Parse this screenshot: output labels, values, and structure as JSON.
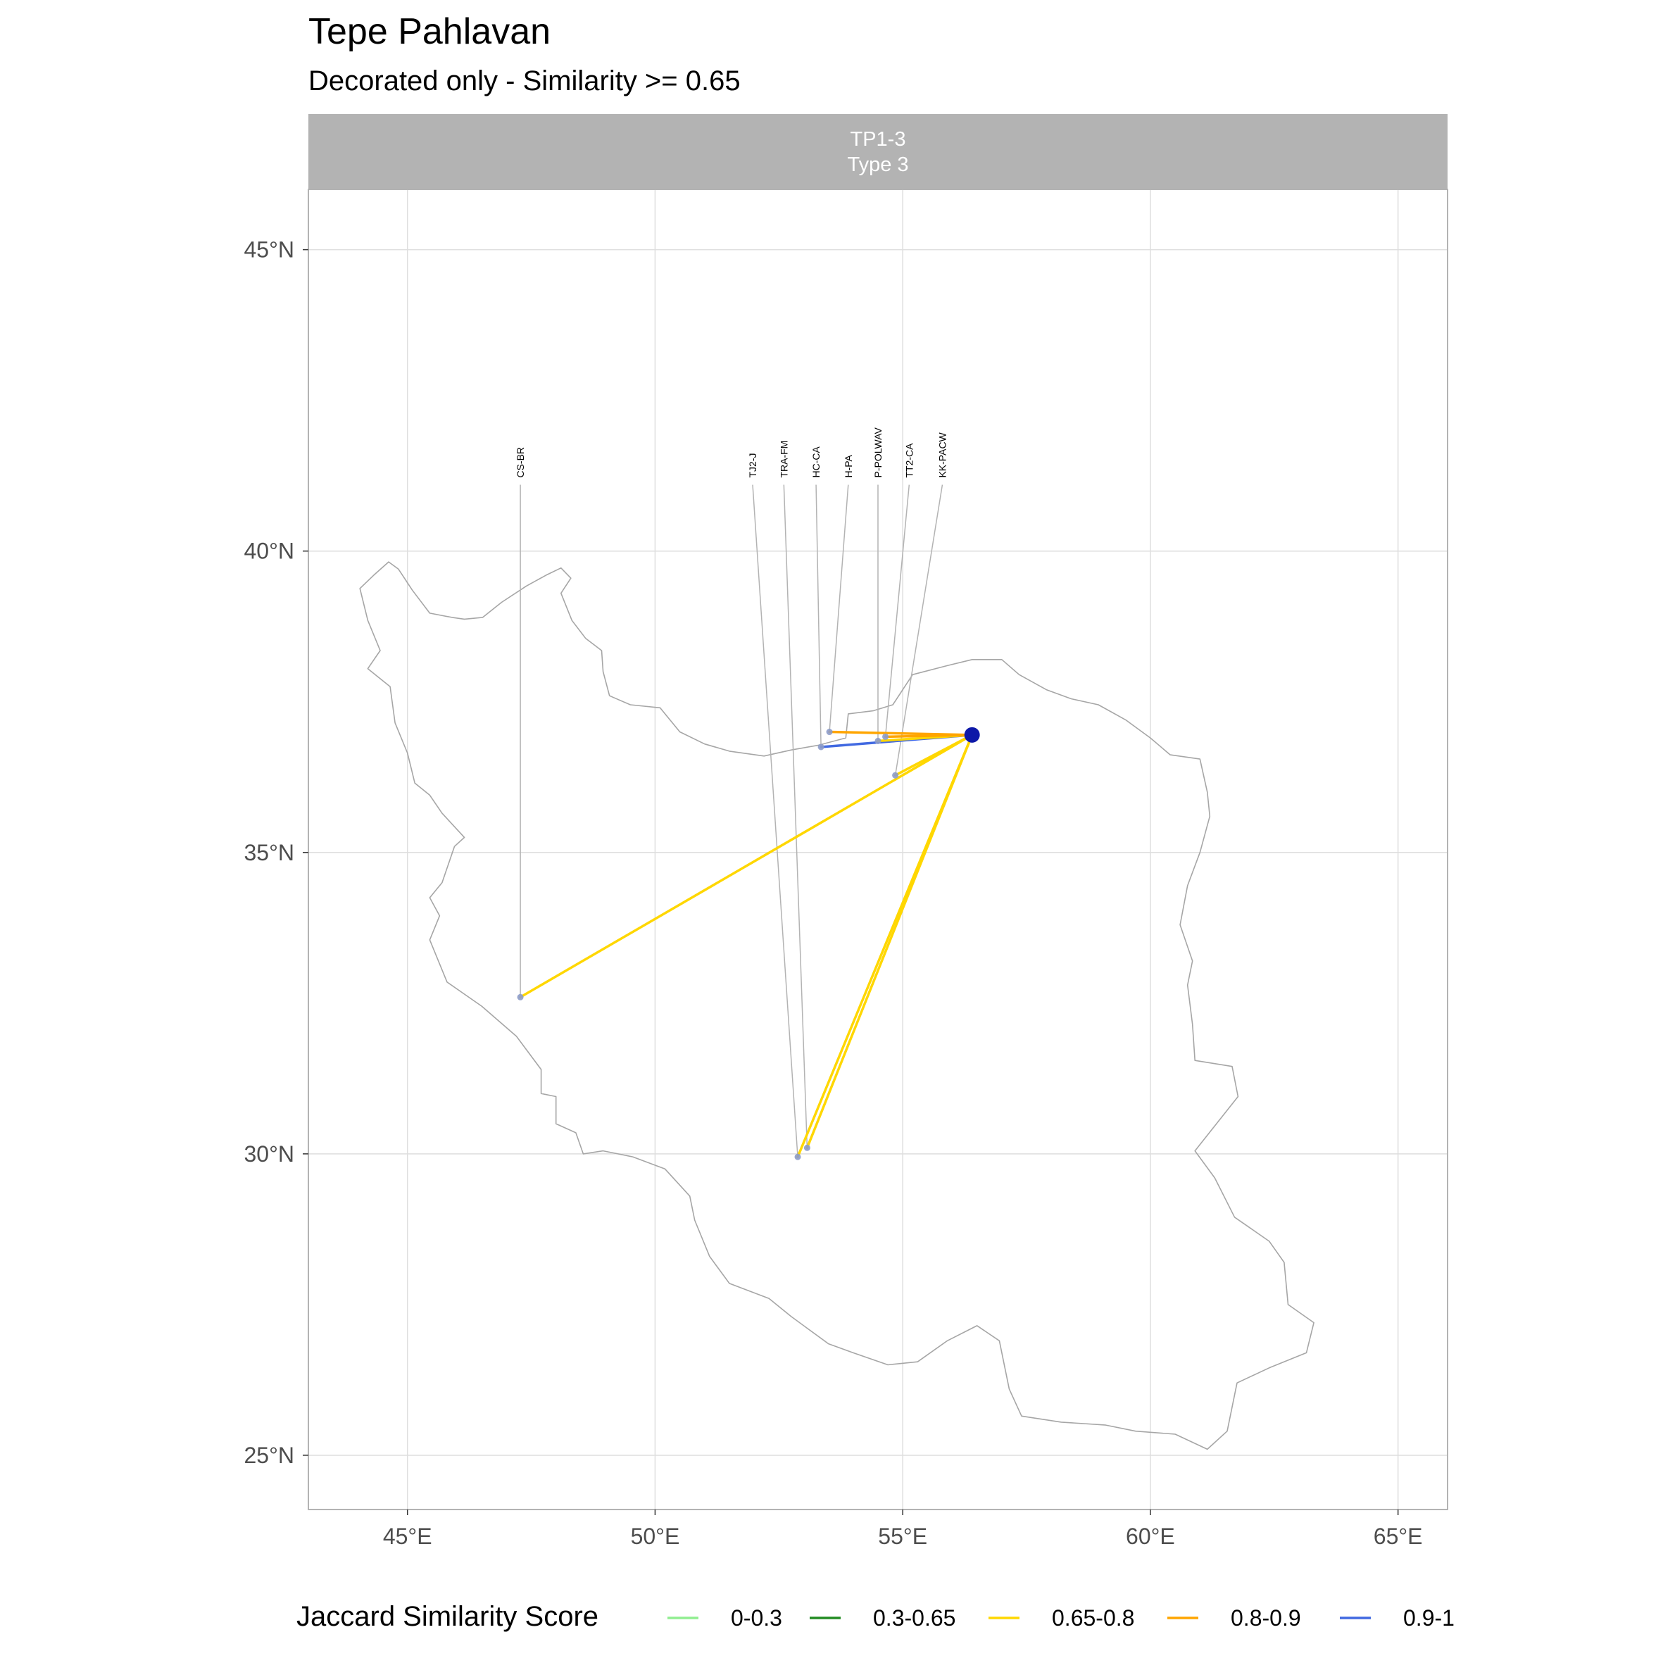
{
  "title": "Tepe Pahlavan",
  "subtitle": "Decorated only - Similarity >= 0.65",
  "facet": {
    "line1": "TP1-3",
    "line2": "Type 3"
  },
  "axes": {
    "x_ticks": [
      {
        "value": 45,
        "label": "45°E"
      },
      {
        "value": 50,
        "label": "50°E"
      },
      {
        "value": 55,
        "label": "55°E"
      },
      {
        "value": 60,
        "label": "60°E"
      },
      {
        "value": 65,
        "label": "65°E"
      }
    ],
    "y_ticks": [
      {
        "value": 25,
        "label": "25°N"
      },
      {
        "value": 30,
        "label": "30°N"
      },
      {
        "value": 35,
        "label": "35°N"
      },
      {
        "value": 40,
        "label": "40°N"
      },
      {
        "value": 45,
        "label": "45°N"
      }
    ],
    "xlim": [
      43,
      66
    ],
    "ylim": [
      24.1,
      46.0
    ]
  },
  "legend": {
    "title": "Jaccard Similarity Score",
    "items": [
      {
        "label": "0-0.3",
        "color": "#90EE90"
      },
      {
        "label": "0.3-0.65",
        "color": "#228B22"
      },
      {
        "label": "0.65-0.8",
        "color": "#FFD700"
      },
      {
        "label": "0.8-0.9",
        "color": "#FFA500"
      },
      {
        "label": "0.9-1",
        "color": "#4169E1"
      }
    ]
  },
  "chart_data": {
    "type": "map",
    "focal_site": {
      "lon": 56.4,
      "lat": 36.95
    },
    "label_lat": 41.1,
    "sites": [
      {
        "name": "CS-BR",
        "lon": 47.28,
        "lat": 32.6,
        "label_lon": 47.28,
        "score_class": "0.65-0.8"
      },
      {
        "name": "TJ2-J",
        "lon": 52.88,
        "lat": 29.95,
        "label_lon": 51.97,
        "score_class": "0.65-0.8"
      },
      {
        "name": "TRA-FM",
        "lon": 53.07,
        "lat": 30.1,
        "label_lon": 52.6,
        "score_class": "0.65-0.8"
      },
      {
        "name": "HC-CA",
        "lon": 53.35,
        "lat": 36.75,
        "label_lon": 53.25,
        "score_class": "0.9-1"
      },
      {
        "name": "H-PA",
        "lon": 53.52,
        "lat": 37.0,
        "label_lon": 53.9,
        "score_class": "0.8-0.9"
      },
      {
        "name": "P-POLWAV",
        "lon": 54.5,
        "lat": 36.85,
        "label_lon": 54.5,
        "score_class": "0.65-0.8"
      },
      {
        "name": "TT2-CA",
        "lon": 54.65,
        "lat": 36.92,
        "label_lon": 55.13,
        "score_class": "0.8-0.9"
      },
      {
        "name": "KK-PACW",
        "lon": 54.85,
        "lat": 36.28,
        "label_lon": 55.8,
        "score_class": "0.65-0.8"
      }
    ],
    "country_outline": [
      [
        44.04,
        39.38
      ],
      [
        44.32,
        39.6
      ],
      [
        44.62,
        39.82
      ],
      [
        44.82,
        39.7
      ],
      [
        45.1,
        39.35
      ],
      [
        45.45,
        38.97
      ],
      [
        45.9,
        38.9
      ],
      [
        46.15,
        38.87
      ],
      [
        46.52,
        38.9
      ],
      [
        46.9,
        39.15
      ],
      [
        47.4,
        39.42
      ],
      [
        47.8,
        39.6
      ],
      [
        48.1,
        39.72
      ],
      [
        48.3,
        39.55
      ],
      [
        48.1,
        39.3
      ],
      [
        48.32,
        38.85
      ],
      [
        48.6,
        38.55
      ],
      [
        48.92,
        38.35
      ],
      [
        48.95,
        38.0
      ],
      [
        49.08,
        37.6
      ],
      [
        49.5,
        37.45
      ],
      [
        50.1,
        37.4
      ],
      [
        50.5,
        37.0
      ],
      [
        51.0,
        36.8
      ],
      [
        51.5,
        36.68
      ],
      [
        52.2,
        36.6
      ],
      [
        52.75,
        36.7
      ],
      [
        53.3,
        36.78
      ],
      [
        53.85,
        36.9
      ],
      [
        53.9,
        37.3
      ],
      [
        54.4,
        37.35
      ],
      [
        54.8,
        37.45
      ],
      [
        55.2,
        37.95
      ],
      [
        55.9,
        38.1
      ],
      [
        56.4,
        38.2
      ],
      [
        57.0,
        38.2
      ],
      [
        57.35,
        37.95
      ],
      [
        57.9,
        37.7
      ],
      [
        58.4,
        37.55
      ],
      [
        58.95,
        37.45
      ],
      [
        59.5,
        37.2
      ],
      [
        60.0,
        36.9
      ],
      [
        60.4,
        36.62
      ],
      [
        61.0,
        36.55
      ],
      [
        61.15,
        36.0
      ],
      [
        61.2,
        35.6
      ],
      [
        61.0,
        35.0
      ],
      [
        60.75,
        34.45
      ],
      [
        60.6,
        33.8
      ],
      [
        60.85,
        33.2
      ],
      [
        60.75,
        32.8
      ],
      [
        60.85,
        32.15
      ],
      [
        60.9,
        31.55
      ],
      [
        61.65,
        31.45
      ],
      [
        61.77,
        30.95
      ],
      [
        60.9,
        30.05
      ],
      [
        61.3,
        29.6
      ],
      [
        61.7,
        28.95
      ],
      [
        62.4,
        28.55
      ],
      [
        62.7,
        28.2
      ],
      [
        62.78,
        27.5
      ],
      [
        63.3,
        27.2
      ],
      [
        63.15,
        26.7
      ],
      [
        62.4,
        26.45
      ],
      [
        61.75,
        26.2
      ],
      [
        61.55,
        25.4
      ],
      [
        61.15,
        25.1
      ],
      [
        60.5,
        25.35
      ],
      [
        59.7,
        25.4
      ],
      [
        59.1,
        25.5
      ],
      [
        58.2,
        25.55
      ],
      [
        57.4,
        25.65
      ],
      [
        57.15,
        26.1
      ],
      [
        56.95,
        26.9
      ],
      [
        56.5,
        27.15
      ],
      [
        55.9,
        26.9
      ],
      [
        55.3,
        26.55
      ],
      [
        54.7,
        26.5
      ],
      [
        54.0,
        26.7
      ],
      [
        53.5,
        26.85
      ],
      [
        52.75,
        27.3
      ],
      [
        52.3,
        27.6
      ],
      [
        51.5,
        27.85
      ],
      [
        51.1,
        28.3
      ],
      [
        50.8,
        28.9
      ],
      [
        50.7,
        29.3
      ],
      [
        50.2,
        29.75
      ],
      [
        49.55,
        29.95
      ],
      [
        48.95,
        30.05
      ],
      [
        48.55,
        30.0
      ],
      [
        48.4,
        30.35
      ],
      [
        48.0,
        30.5
      ],
      [
        48.0,
        30.95
      ],
      [
        47.7,
        31.0
      ],
      [
        47.7,
        31.4
      ],
      [
        47.2,
        31.95
      ],
      [
        46.5,
        32.45
      ],
      [
        45.8,
        32.85
      ],
      [
        45.45,
        33.55
      ],
      [
        45.65,
        33.95
      ],
      [
        45.45,
        34.25
      ],
      [
        45.7,
        34.5
      ],
      [
        45.95,
        35.1
      ],
      [
        46.15,
        35.25
      ],
      [
        45.7,
        35.65
      ],
      [
        45.45,
        35.95
      ],
      [
        45.15,
        36.15
      ],
      [
        45.0,
        36.65
      ],
      [
        44.75,
        37.15
      ],
      [
        44.65,
        37.75
      ],
      [
        44.2,
        38.05
      ],
      [
        44.45,
        38.35
      ],
      [
        44.2,
        38.85
      ],
      [
        44.04,
        39.38
      ]
    ]
  }
}
